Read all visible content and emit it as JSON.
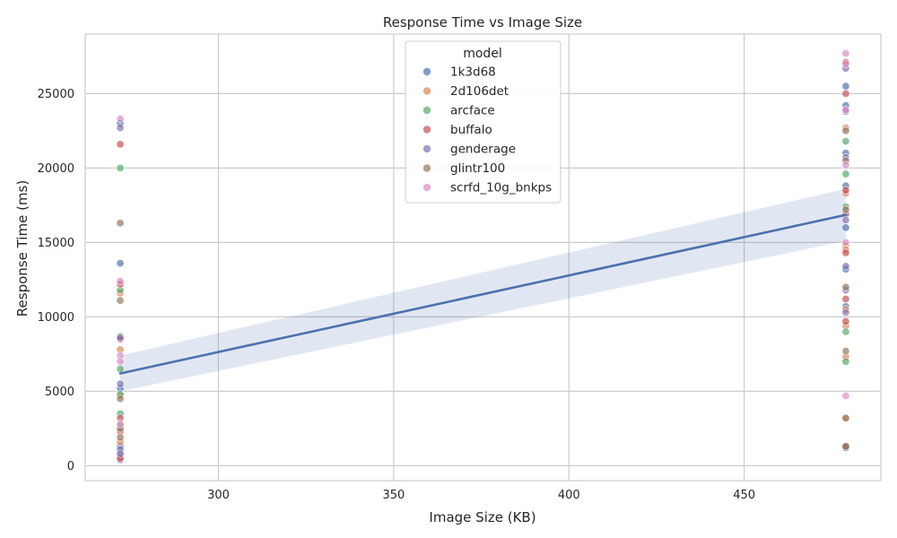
{
  "chart_data": {
    "type": "scatter",
    "title": "Response Time vs Image Size",
    "xlabel": "Image Size (KB)",
    "ylabel": "Response Time (ms)",
    "xlim": [
      262,
      489
    ],
    "ylim": [
      -1000,
      29000
    ],
    "xticks": [
      300,
      350,
      400,
      450
    ],
    "yticks": [
      0,
      5000,
      10000,
      15000,
      20000,
      25000
    ],
    "grid": true,
    "legend": {
      "title": "model",
      "placement": "top-center"
    },
    "regression": {
      "x": [
        272,
        479
      ],
      "y": [
        6200,
        16850
      ],
      "ci_lower": [
        5000,
        15100
      ],
      "ci_upper": [
        7400,
        18600
      ],
      "color": "#4c72b0"
    },
    "series": [
      {
        "name": "1k3d68",
        "color": "#4c72b0",
        "points": [
          [
            272,
            13600
          ],
          [
            272,
            5200
          ],
          [
            272,
            1300
          ],
          [
            272,
            900
          ],
          [
            272,
            400
          ],
          [
            272,
            23000
          ],
          [
            479,
            25500
          ],
          [
            479,
            24200
          ],
          [
            479,
            21000
          ],
          [
            479,
            18800
          ],
          [
            479,
            16000
          ],
          [
            479,
            13200
          ],
          [
            479,
            10700
          ],
          [
            479,
            1200
          ]
        ]
      },
      {
        "name": "2d106det",
        "color": "#dd8452",
        "points": [
          [
            272,
            7800
          ],
          [
            272,
            1600
          ],
          [
            272,
            4700
          ],
          [
            272,
            11600
          ],
          [
            272,
            600
          ],
          [
            479,
            22700
          ],
          [
            479,
            18300
          ],
          [
            479,
            14800
          ],
          [
            479,
            14500
          ],
          [
            479,
            10500
          ],
          [
            479,
            9400
          ],
          [
            479,
            7300
          ],
          [
            479,
            3200
          ]
        ]
      },
      {
        "name": "arcface",
        "color": "#55a868",
        "points": [
          [
            272,
            20000
          ],
          [
            272,
            11800
          ],
          [
            272,
            8700
          ],
          [
            272,
            6500
          ],
          [
            272,
            4800
          ],
          [
            272,
            3500
          ],
          [
            272,
            2700
          ],
          [
            479,
            21800
          ],
          [
            479,
            19600
          ],
          [
            479,
            17400
          ],
          [
            479,
            9000
          ],
          [
            479,
            7000
          ]
        ]
      },
      {
        "name": "buffalo",
        "color": "#c44e52",
        "points": [
          [
            272,
            21600
          ],
          [
            272,
            12200
          ],
          [
            272,
            8500
          ],
          [
            272,
            3200
          ],
          [
            272,
            2300
          ],
          [
            272,
            500
          ],
          [
            479,
            27100
          ],
          [
            479,
            25000
          ],
          [
            479,
            18500
          ],
          [
            479,
            16900
          ],
          [
            479,
            14300
          ],
          [
            479,
            11200
          ],
          [
            479,
            9700
          ],
          [
            479,
            1300
          ]
        ]
      },
      {
        "name": "genderage",
        "color": "#8172b3",
        "points": [
          [
            272,
            22700
          ],
          [
            272,
            8600
          ],
          [
            272,
            5500
          ],
          [
            272,
            1100
          ],
          [
            272,
            800
          ],
          [
            479,
            26700
          ],
          [
            479,
            23800
          ],
          [
            479,
            20700
          ],
          [
            479,
            16500
          ],
          [
            479,
            13400
          ],
          [
            479,
            11800
          ],
          [
            479,
            10300
          ]
        ]
      },
      {
        "name": "glintr100",
        "color": "#937860",
        "points": [
          [
            272,
            16300
          ],
          [
            272,
            11100
          ],
          [
            272,
            4500
          ],
          [
            272,
            2500
          ],
          [
            272,
            1900
          ],
          [
            479,
            22500
          ],
          [
            479,
            20500
          ],
          [
            479,
            17200
          ],
          [
            479,
            12000
          ],
          [
            479,
            7700
          ],
          [
            479,
            3200
          ],
          [
            479,
            1300
          ]
        ]
      },
      {
        "name": "scrfd_10g_bnkps",
        "color": "#da8bc3",
        "points": [
          [
            272,
            23300
          ],
          [
            272,
            12400
          ],
          [
            272,
            7400
          ],
          [
            272,
            7000
          ],
          [
            272,
            2800
          ],
          [
            479,
            27700
          ],
          [
            479,
            27000
          ],
          [
            479,
            23900
          ],
          [
            479,
            20200
          ],
          [
            479,
            15000
          ],
          [
            479,
            4700
          ]
        ]
      }
    ]
  }
}
